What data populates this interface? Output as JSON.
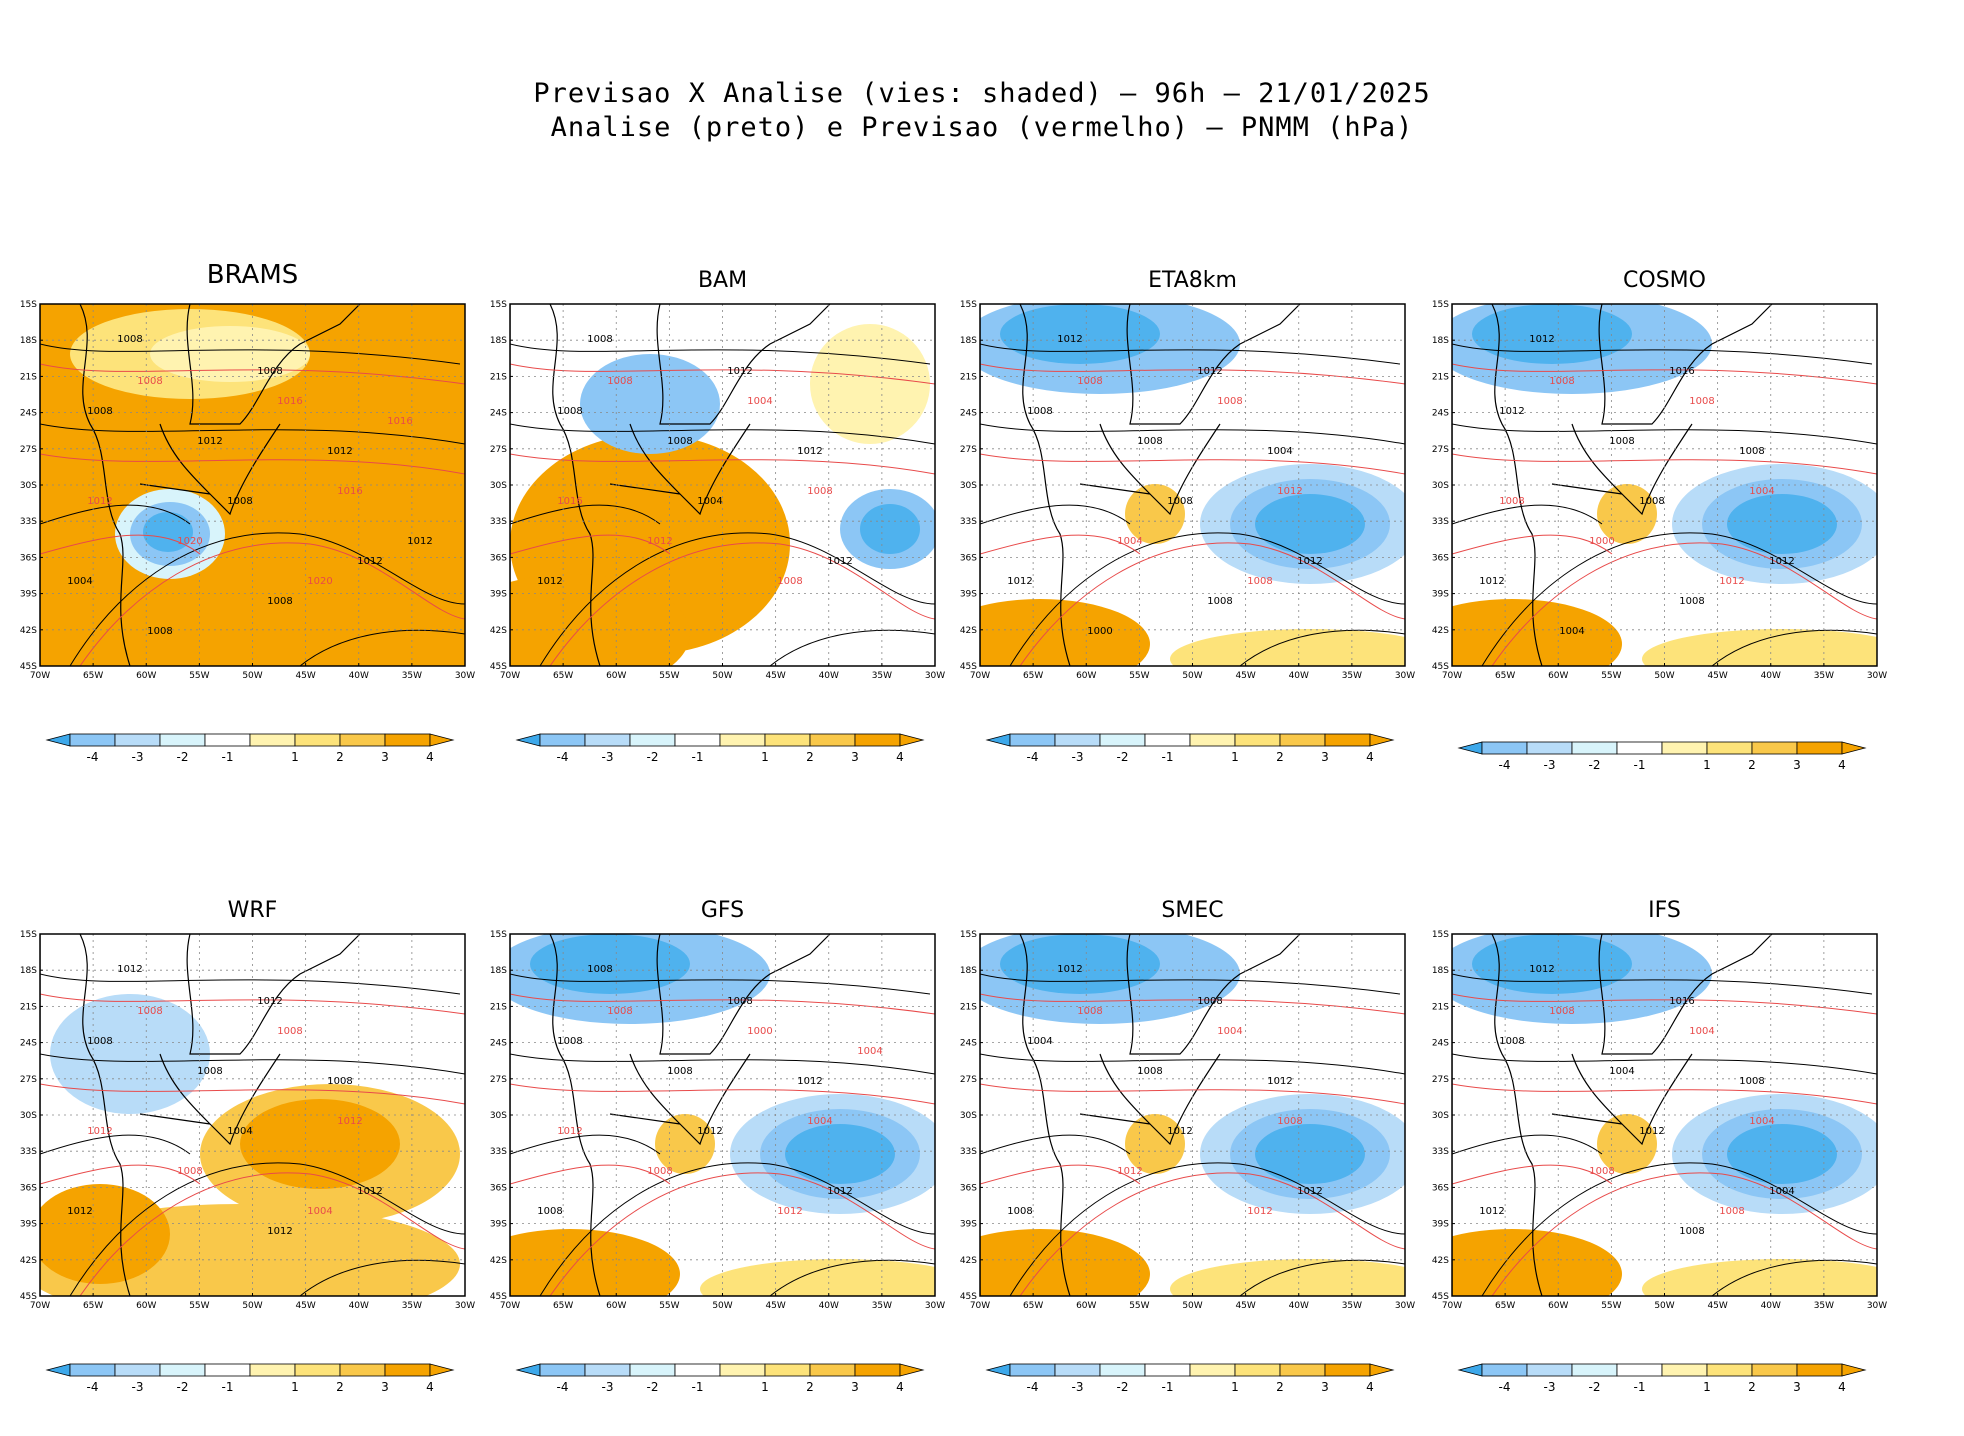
{
  "title": {
    "line1": "Previsao X Analise (vies: shaded) — 96h — 21/01/2025",
    "line2": "Analise (preto) e Previsao (vermelho) — PNMM (hPa)"
  },
  "axes": {
    "lat_labels": [
      "15S",
      "18S",
      "21S",
      "24S",
      "27S",
      "30S",
      "33S",
      "36S",
      "39S",
      "42S",
      "45S"
    ],
    "lon_labels": [
      "70W",
      "65W",
      "60W",
      "55W",
      "50W",
      "45W",
      "40W",
      "35W",
      "30W"
    ]
  },
  "colorbar": {
    "ticks": [
      "-4",
      "-3",
      "-2",
      "-1",
      "1",
      "2",
      "3",
      "4"
    ],
    "colors": [
      "#4fb2ee",
      "#8cc6f5",
      "#b8dcf8",
      "#d8f4fb",
      "#ffffff",
      "#fff3b0",
      "#fde37a",
      "#f9c84a",
      "#f5a300"
    ],
    "neg_color": "#3da8ea",
    "pos_color": "#f5a300"
  },
  "colors": {
    "analysis_contour": "#000000",
    "forecast_contour": "#e84a4a",
    "land_border": "#000000"
  },
  "panels": [
    {
      "name": "BRAMS",
      "bias": "warm",
      "labels_black": [
        "1008",
        "1008",
        "1008",
        "1012",
        "1012",
        "1008",
        "1012",
        "1004",
        "1008",
        "1008",
        "1012"
      ],
      "labels_red": [
        "1008",
        "1016",
        "1016",
        "1020",
        "1020",
        "1012",
        "1016"
      ]
    },
    {
      "name": "BAM",
      "bias": "mixed",
      "labels_black": [
        "1008",
        "1012",
        "1008",
        "1008",
        "1012",
        "1004",
        "1012",
        "1012"
      ],
      "labels_red": [
        "1008",
        "1004",
        "1008",
        "1012",
        "1008",
        "1016"
      ]
    },
    {
      "name": "ETA8km",
      "bias": "cold",
      "labels_black": [
        "1012",
        "1012",
        "1008",
        "1008",
        "1004",
        "1008",
        "1012",
        "1012",
        "1008",
        "1000"
      ],
      "labels_red": [
        "1008",
        "1008",
        "1012",
        "1004",
        "1008"
      ]
    },
    {
      "name": "COSMO",
      "bias": "cold",
      "labels_black": [
        "1012",
        "1016",
        "1012",
        "1008",
        "1008",
        "1008",
        "1012",
        "1012",
        "1008",
        "1004"
      ],
      "labels_red": [
        "1008",
        "1008",
        "1004",
        "1000",
        "1012",
        "1008"
      ]
    },
    {
      "name": "WRF",
      "bias": "mixed",
      "labels_black": [
        "1012",
        "1012",
        "1008",
        "1008",
        "1008",
        "1004",
        "1012",
        "1012",
        "1012"
      ],
      "labels_red": [
        "1008",
        "1008",
        "1012",
        "1008",
        "1004",
        "1012"
      ]
    },
    {
      "name": "GFS",
      "bias": "cold",
      "labels_black": [
        "1008",
        "1008",
        "1008",
        "1008",
        "1012",
        "1012",
        "1012",
        "1008"
      ],
      "labels_red": [
        "1008",
        "1000",
        "1004",
        "1008",
        "1012",
        "1012",
        "1004"
      ]
    },
    {
      "name": "SMEC",
      "bias": "cold",
      "labels_black": [
        "1012",
        "1008",
        "1004",
        "1008",
        "1012",
        "1012",
        "1012",
        "1008"
      ],
      "labels_red": [
        "1008",
        "1004",
        "1008",
        "1012",
        "1012"
      ]
    },
    {
      "name": "IFS",
      "bias": "cold",
      "labels_black": [
        "1012",
        "1016",
        "1008",
        "1004",
        "1008",
        "1012",
        "1004",
        "1012",
        "1008"
      ],
      "labels_red": [
        "1008",
        "1004",
        "1004",
        "1008",
        "1008"
      ]
    }
  ]
}
